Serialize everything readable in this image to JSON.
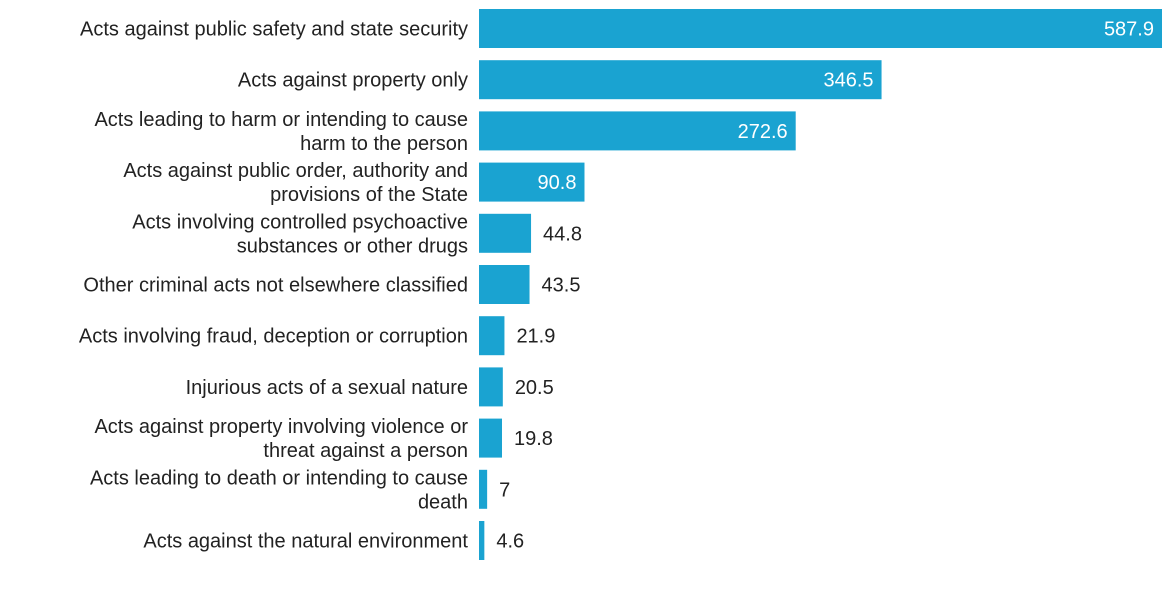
{
  "chart_data": {
    "type": "bar",
    "orientation": "horizontal",
    "categories": [
      [
        "Acts against public safety and state security"
      ],
      [
        "Acts against property only"
      ],
      [
        "Acts leading to harm or intending to cause",
        "harm to the person"
      ],
      [
        "Acts against public order, authority and",
        "provisions of the State"
      ],
      [
        "Acts involving controlled psychoactive",
        "substances or other drugs"
      ],
      [
        "Other criminal acts not elsewhere classified"
      ],
      [
        "Acts involving fraud, deception or corruption"
      ],
      [
        "Injurious acts of a sexual nature"
      ],
      [
        "Acts against property involving violence or",
        "threat against a person"
      ],
      [
        "Acts leading to death or intending to cause",
        "death"
      ],
      [
        "Acts against the natural environment"
      ]
    ],
    "values": [
      587.9,
      346.5,
      272.6,
      90.8,
      44.8,
      43.5,
      21.9,
      20.5,
      19.8,
      7,
      4.6
    ],
    "value_labels": [
      "587.9",
      "346.5",
      "272.6",
      "90.8",
      "44.8",
      "43.5",
      "21.9",
      "20.5",
      "19.8",
      "7",
      "4.6"
    ],
    "xlim": [
      0,
      587.9
    ],
    "bar_color": "#1aa3d1",
    "grid": false,
    "legend": "none",
    "title": "",
    "xlabel": "",
    "ylabel": ""
  }
}
